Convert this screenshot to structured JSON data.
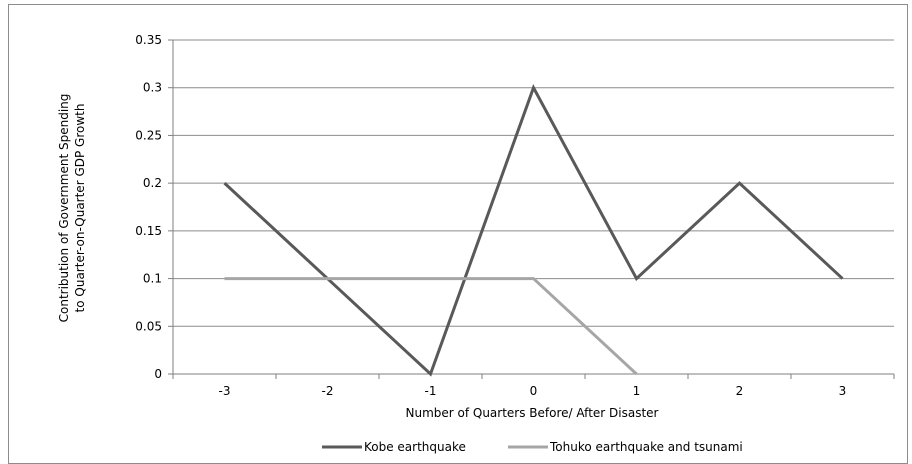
{
  "chart_data": {
    "type": "line",
    "xlabel": "Number of Quarters Before/ After Disaster",
    "ylabel_lines": [
      "Contribution of Government Spending",
      "to Quarter-on-Quarter GDP Growth"
    ],
    "categories": [
      "-3",
      "-2",
      "-1",
      "0",
      "1",
      "2",
      "3"
    ],
    "ylim": [
      0,
      0.35
    ],
    "yticks": [
      "0",
      "0.05",
      "0.1",
      "0.15",
      "0.2",
      "0.25",
      "0.3",
      "0.35"
    ],
    "grid": true,
    "legend_position": "bottom",
    "series": [
      {
        "name": "Kobe earthquake",
        "color": "#595959",
        "values": [
          0.2,
          0.1,
          0,
          0.3,
          0.1,
          0.2,
          0.1
        ]
      },
      {
        "name": "Tohuko earthquake and tsunami",
        "color": "#a6a6a6",
        "values": [
          0.1,
          0.1,
          0.1,
          0.1,
          0,
          null,
          null
        ]
      }
    ]
  }
}
